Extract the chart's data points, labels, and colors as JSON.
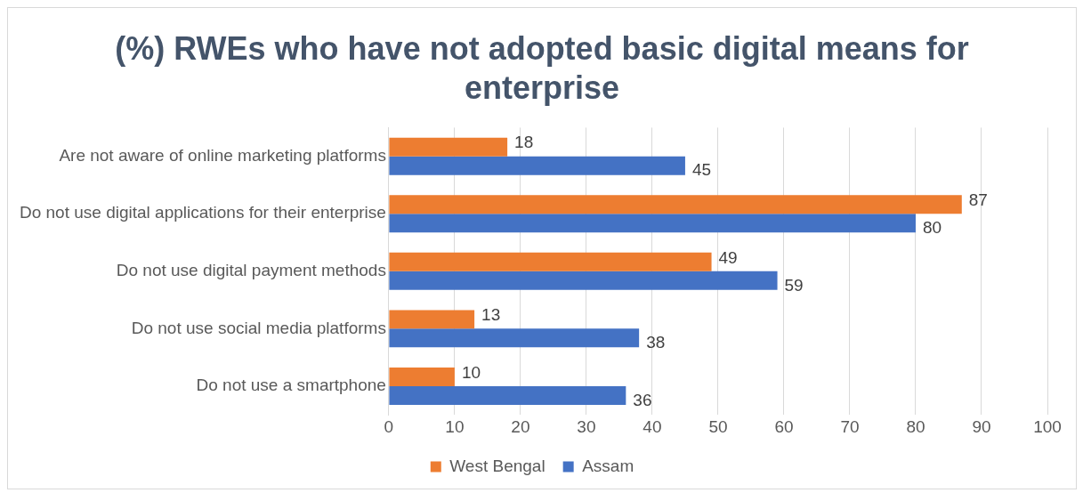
{
  "chart_data": {
    "type": "bar",
    "orientation": "horizontal",
    "title": "(%) RWEs who have not adopted basic digital means for enterprise",
    "categories": [
      "Are not aware of online marketing platforms",
      "Do not use digital applications for their enterprise",
      "Do not use digital payment methods",
      "Do not use social media platforms",
      "Do not use a smartphone"
    ],
    "series": [
      {
        "name": "West Bengal",
        "color": "#ed7d31",
        "values": [
          18,
          87,
          49,
          13,
          10
        ]
      },
      {
        "name": "Assam",
        "color": "#4472c4",
        "values": [
          45,
          80,
          59,
          38,
          36
        ]
      }
    ],
    "xlim": [
      0,
      100
    ],
    "xticks": [
      0,
      10,
      20,
      30,
      40,
      50,
      60,
      70,
      80,
      90,
      100
    ],
    "grid": "x",
    "legend": "bottom",
    "data_labels": true
  }
}
